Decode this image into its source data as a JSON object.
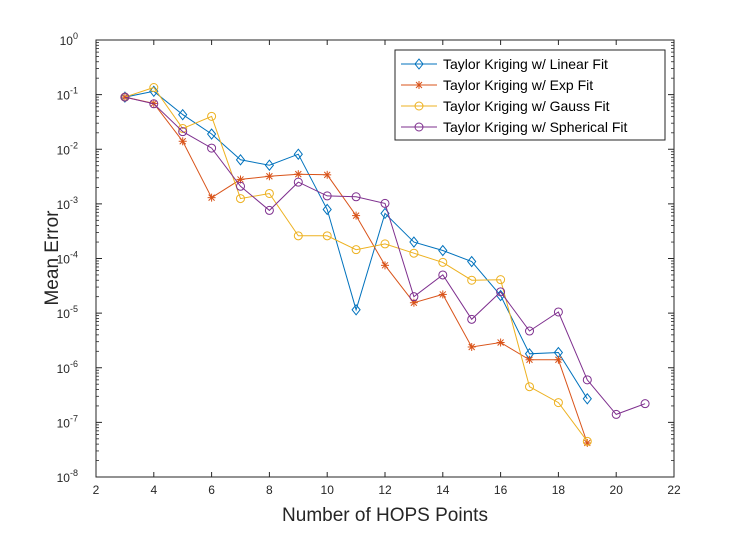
{
  "chart_data": {
    "type": "line",
    "title": "",
    "xlabel": "Number of HOPS Points",
    "ylabel": "Mean Error",
    "xlim": [
      2,
      22
    ],
    "ylim_exponents": [
      -8,
      0
    ],
    "y_scale": "log",
    "x_ticks": [
      "2",
      "4",
      "6",
      "8",
      "10",
      "12",
      "14",
      "16",
      "18",
      "20",
      "22"
    ],
    "y_tick_base": "10",
    "y_tick_exponents": [
      "-8",
      "-7",
      "-6",
      "-5",
      "-4",
      "-3",
      "-2",
      "-1",
      "0"
    ],
    "grid": false,
    "legend_position": "top-right",
    "series": [
      {
        "name": "Taylor Kriging w/ Linear Fit",
        "color": "#0072BD",
        "marker": "diamond",
        "x": [
          3,
          4,
          5,
          6,
          7,
          8,
          9,
          10,
          11,
          12,
          13,
          14,
          15,
          16,
          17,
          18,
          19
        ],
        "y": [
          0.09,
          0.115,
          0.043,
          0.019,
          0.0064,
          0.0051,
          0.0081,
          0.00079,
          1.15e-05,
          0.00067,
          0.0002,
          0.00014,
          8.8e-05,
          2.1e-05,
          1.8e-06,
          1.9e-06,
          2.7e-07
        ]
      },
      {
        "name": "Taylor Kriging w/ Exp Fit",
        "color": "#D95319",
        "marker": "asterisk",
        "x": [
          3,
          4,
          5,
          6,
          7,
          8,
          9,
          10,
          11,
          12,
          13,
          14,
          15,
          16,
          17,
          18,
          19
        ],
        "y": [
          0.09,
          0.069,
          0.014,
          0.0013,
          0.0028,
          0.0032,
          0.0035,
          0.0034,
          0.00061,
          7.5e-05,
          1.55e-05,
          2.2e-05,
          2.4e-06,
          2.9e-06,
          1.4e-06,
          1.4e-06,
          4.2e-08
        ]
      },
      {
        "name": "Taylor Kriging w/ Gauss Fit",
        "color": "#EDB120",
        "marker": "circle",
        "x": [
          3,
          4,
          5,
          6,
          7,
          8,
          9,
          10,
          11,
          12,
          13,
          14,
          15,
          16,
          17,
          18,
          19
        ],
        "y": [
          0.09,
          0.135,
          0.024,
          0.04,
          0.00125,
          0.00155,
          0.00026,
          0.00026,
          0.000145,
          0.000185,
          0.000125,
          8.5e-05,
          4e-05,
          4.1e-05,
          4.5e-07,
          2.3e-07,
          4.5e-08
        ]
      },
      {
        "name": "Taylor Kriging w/ Spherical Fit",
        "color": "#7E2F8E",
        "marker": "circle",
        "x": [
          3,
          4,
          5,
          6,
          7,
          8,
          9,
          10,
          11,
          12,
          13,
          14,
          15,
          16,
          17,
          18,
          19,
          20,
          21
        ],
        "y": [
          0.09,
          0.068,
          0.021,
          0.0105,
          0.0021,
          0.00076,
          0.0025,
          0.0014,
          0.00135,
          0.00102,
          2e-05,
          5e-05,
          7.7e-06,
          2.45e-05,
          4.7e-06,
          1.05e-05,
          6e-07,
          1.4e-07,
          2.2e-07
        ]
      }
    ]
  }
}
